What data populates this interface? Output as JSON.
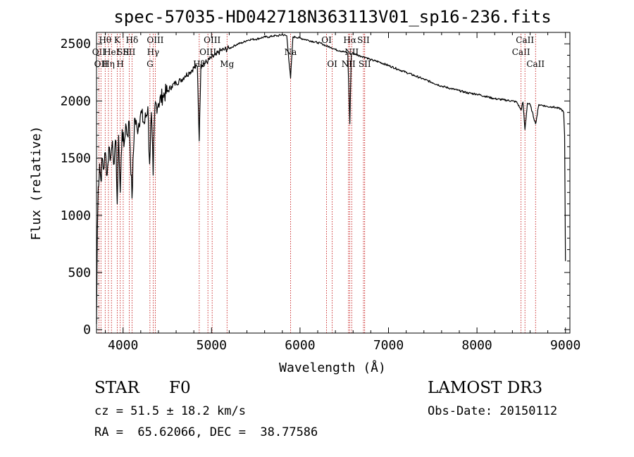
{
  "chart_data": {
    "type": "line",
    "title": "spec-57035-HD042718N363113V01_sp16-236.fits",
    "xlabel": "Wavelength (Å)",
    "ylabel": "Flux (relative)",
    "xlim": [
      3700,
      9050
    ],
    "ylim": [
      -30,
      2600
    ],
    "xticks": [
      4000,
      5000,
      6000,
      7000,
      8000,
      9000
    ],
    "yticks": [
      0,
      500,
      1000,
      1500,
      2000,
      2500
    ],
    "xtick_labels": [
      "4000",
      "5000",
      "6000",
      "7000",
      "8000",
      "9000"
    ],
    "ytick_labels": [
      "0",
      "500",
      "1000",
      "1500",
      "2000",
      "2500"
    ],
    "series": [
      {
        "name": "spectrum",
        "x": [
          3700,
          3710,
          3720,
          3735,
          3750,
          3765,
          3780,
          3800,
          3820,
          3840,
          3860,
          3880,
          3900,
          3920,
          3934,
          3950,
          3968,
          3990,
          4010,
          4030,
          4050,
          4070,
          4101,
          4130,
          4160,
          4200,
          4240,
          4280,
          4300,
          4320,
          4340,
          4360,
          4400,
          4450,
          4500,
          4550,
          4600,
          4650,
          4700,
          4750,
          4800,
          4840,
          4861,
          4880,
          4920,
          4960,
          5000,
          5050,
          5100,
          5150,
          5200,
          5250,
          5300,
          5350,
          5400,
          5450,
          5500,
          5550,
          5600,
          5650,
          5700,
          5750,
          5800,
          5850,
          5893,
          5920,
          5950,
          6000,
          6050,
          6100,
          6150,
          6200,
          6250,
          6300,
          6350,
          6400,
          6450,
          6500,
          6540,
          6563,
          6580,
          6600,
          6650,
          6700,
          6750,
          6800,
          6900,
          7000,
          7100,
          7200,
          7300,
          7400,
          7500,
          7600,
          7700,
          7800,
          7900,
          8000,
          8100,
          8200,
          8300,
          8400,
          8450,
          8498,
          8520,
          8542,
          8570,
          8600,
          8662,
          8700,
          8750,
          8800,
          8850,
          8900,
          8950,
          8980,
          8990,
          9000
        ],
        "y": [
          50,
          900,
          1250,
          1450,
          1300,
          1500,
          1400,
          1550,
          1350,
          1600,
          1500,
          1650,
          1450,
          1650,
          1100,
          1700,
          1200,
          1750,
          1600,
          1800,
          1700,
          1820,
          1150,
          1850,
          1750,
          1900,
          1800,
          1950,
          1450,
          1900,
          1350,
          1950,
          1980,
          2050,
          2080,
          2130,
          2160,
          2180,
          2220,
          2250,
          2290,
          2300,
          1650,
          2320,
          2330,
          2350,
          2380,
          2400,
          2440,
          2450,
          2460,
          2480,
          2500,
          2510,
          2530,
          2540,
          2540,
          2550,
          2560,
          2560,
          2570,
          2570,
          2580,
          2570,
          2200,
          2560,
          2560,
          2550,
          2540,
          2530,
          2520,
          2510,
          2500,
          2480,
          2470,
          2450,
          2440,
          2430,
          2420,
          1800,
          2410,
          2420,
          2400,
          2390,
          2380,
          2360,
          2340,
          2310,
          2280,
          2250,
          2220,
          2190,
          2160,
          2130,
          2110,
          2090,
          2070,
          2060,
          2040,
          2020,
          2010,
          2000,
          1990,
          1920,
          1990,
          1750,
          1980,
          1970,
          1800,
          1970,
          1960,
          1950,
          1950,
          1940,
          1930,
          1900,
          1700,
          600
        ]
      }
    ],
    "lines": [
      {
        "wl": 3727,
        "label": "OII",
        "row": 1
      },
      {
        "wl": 3750,
        "label": "OII",
        "row": 2
      },
      {
        "wl": 3798,
        "label": "Hθ",
        "row": 0
      },
      {
        "wl": 3835,
        "label": "Hη",
        "row": 2
      },
      {
        "wl": 3869,
        "label": "HeI",
        "row": 1
      },
      {
        "wl": 3934,
        "label": "K",
        "row": 0
      },
      {
        "wl": 3968,
        "label": "H",
        "row": 2
      },
      {
        "wl": 4002,
        "label": "SII",
        "row": 1
      },
      {
        "wl": 4070,
        "label": "SII",
        "row": 1
      },
      {
        "wl": 4101,
        "label": "Hδ",
        "row": 0
      },
      {
        "wl": 4304,
        "label": "G",
        "row": 2
      },
      {
        "wl": 4340,
        "label": "Hγ",
        "row": 1
      },
      {
        "wl": 4364,
        "label": "OIII",
        "row": 0
      },
      {
        "wl": 4861,
        "label": "Hβ",
        "row": 2
      },
      {
        "wl": 4959,
        "label": "OIII",
        "row": 1
      },
      {
        "wl": 5007,
        "label": "OIII",
        "row": 0
      },
      {
        "wl": 5175,
        "label": "Mg",
        "row": 2
      },
      {
        "wl": 5893,
        "label": "Na",
        "row": 1
      },
      {
        "wl": 6300,
        "label": "OI",
        "row": 0
      },
      {
        "wl": 6364,
        "label": "OI",
        "row": 2
      },
      {
        "wl": 6548,
        "label": "NII",
        "row": 2
      },
      {
        "wl": 6563,
        "label": "Hα",
        "row": 0
      },
      {
        "wl": 6584,
        "label": "NII",
        "row": 1
      },
      {
        "wl": 6717,
        "label": "SII",
        "row": 0
      },
      {
        "wl": 6731,
        "label": "SII",
        "row": 2
      },
      {
        "wl": 8498,
        "label": "CaII",
        "row": 1
      },
      {
        "wl": 8542,
        "label": "CaII",
        "row": 0
      },
      {
        "wl": 8662,
        "label": "CaII",
        "row": 2
      }
    ]
  },
  "info": {
    "object_type": "STAR",
    "subclass": "F0",
    "survey": "LAMOST DR3",
    "cz": "cz = 51.5 ± 18.2 km/s",
    "obs_date": "Obs-Date: 20150112",
    "coords": "RA =  65.62066, DEC =  38.77586"
  }
}
